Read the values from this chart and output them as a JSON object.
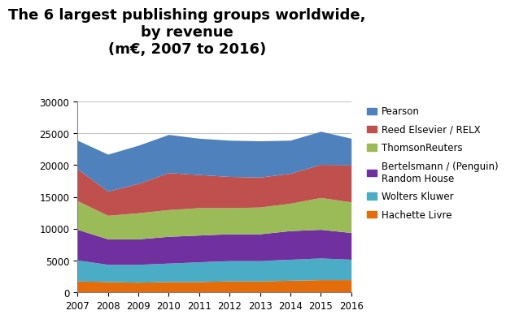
{
  "years": [
    2007,
    2008,
    2009,
    2010,
    2011,
    2012,
    2013,
    2014,
    2015,
    2016
  ],
  "title": "The 6 largest publishing groups worldwide,\nby revenue\n(m€, 2007 to 2016)",
  "series": [
    {
      "name": "Hachette Livre",
      "color": "#E46C0A",
      "values": [
        1800,
        1700,
        1600,
        1700,
        1700,
        1800,
        1800,
        1900,
        2000,
        2000
      ]
    },
    {
      "name": "Wolters Kluwer",
      "color": "#4BACC6",
      "values": [
        3300,
        2700,
        2800,
        2900,
        3100,
        3200,
        3200,
        3300,
        3400,
        3200
      ]
    },
    {
      "name": "Bertelsmann / (Penguin)\nRandom House",
      "color": "#7030A0",
      "values": [
        4800,
        4000,
        4000,
        4200,
        4200,
        4200,
        4200,
        4500,
        4500,
        4200
      ]
    },
    {
      "name": "ThomsonReuters",
      "color": "#9BBB59",
      "values": [
        4500,
        3700,
        4100,
        4200,
        4300,
        4100,
        4200,
        4300,
        5000,
        4800
      ]
    },
    {
      "name": "Reed Elsevier / RELX",
      "color": "#C0504D",
      "values": [
        5000,
        3800,
        4600,
        5800,
        5200,
        4900,
        4700,
        4700,
        5200,
        5800
      ]
    },
    {
      "name": "Pearson",
      "color": "#4F81BD",
      "values": [
        4500,
        5800,
        6000,
        6000,
        5700,
        5700,
        5700,
        5200,
        5200,
        4200
      ]
    }
  ],
  "ylim": [
    0,
    30000
  ],
  "yticks": [
    0,
    5000,
    10000,
    15000,
    20000,
    25000,
    30000
  ],
  "background_color": "#FFFFFF",
  "plot_bg_color": "#FFFFFF",
  "grid_color": "#BFBFBF",
  "title_fontsize": 13,
  "legend_fontsize": 8.5,
  "tick_fontsize": 8.5
}
